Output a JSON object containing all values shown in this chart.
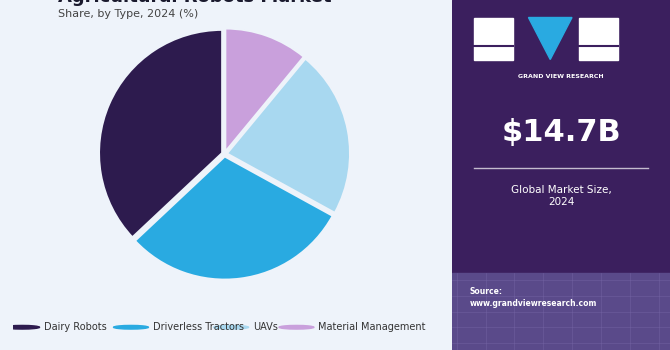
{
  "title": "Agricultural Robots Market",
  "subtitle": "Share, by Type, 2024 (%)",
  "slices": [
    {
      "label": "Dairy Robots",
      "value": 37,
      "color": "#2d1b4e"
    },
    {
      "label": "Driverless Tractors",
      "value": 30,
      "color": "#29aae1"
    },
    {
      "label": "UAVs",
      "value": 22,
      "color": "#a8d8f0"
    },
    {
      "label": "Material Management",
      "value": 11,
      "color": "#c9a0dc"
    }
  ],
  "startangle": 90,
  "sidebar_bg": "#3b1f5e",
  "sidebar_bottom_bg": "#5a4a8a",
  "main_bg": "#eef3fa",
  "market_size": "$14.7B",
  "market_label": "Global Market Size,\n2024",
  "source_label": "Source:\nwww.grandviewresearch.com",
  "legend_items": [
    {
      "label": "Dairy Robots",
      "color": "#2d1b4e"
    },
    {
      "label": "Driverless Tractors",
      "color": "#29aae1"
    },
    {
      "label": "UAVs",
      "color": "#a8d8f0"
    },
    {
      "label": "Material Management",
      "color": "#c9a0dc"
    }
  ],
  "title_color": "#1a1a2e",
  "subtitle_color": "#444444"
}
